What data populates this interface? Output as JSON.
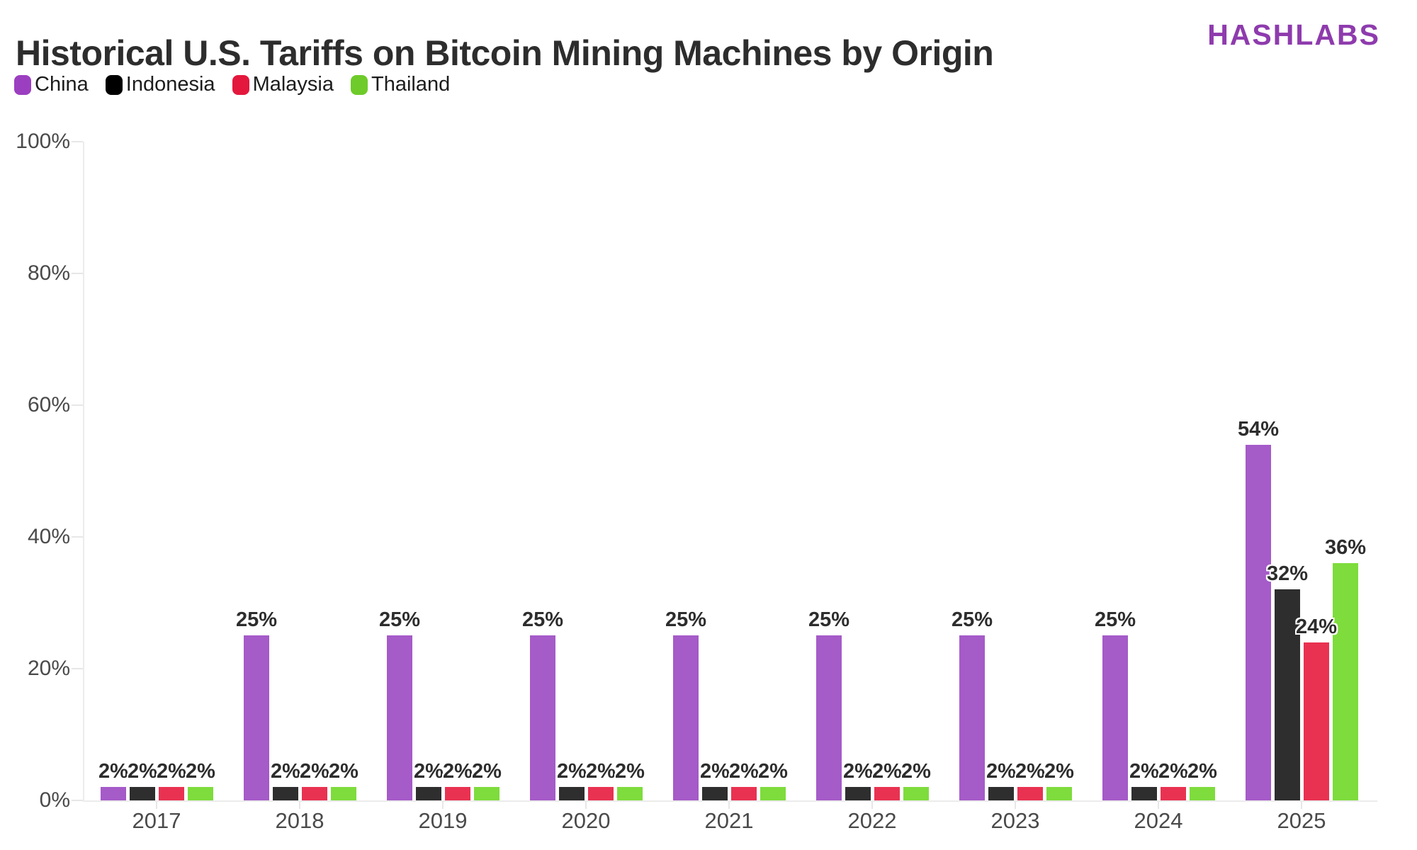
{
  "brand": {
    "logo_text": "HASHLABS",
    "logo_color": "#8e3bad"
  },
  "chart_data": {
    "type": "bar",
    "title": "Historical U.S. Tariffs on Bitcoin Mining Machines by Origin",
    "categories": [
      "2017",
      "2018",
      "2019",
      "2020",
      "2021",
      "2022",
      "2023",
      "2024",
      "2025"
    ],
    "series": [
      {
        "name": "China",
        "color": "#a55bc8",
        "legend_color": "#9b3fc0",
        "values": [
          2,
          25,
          25,
          25,
          25,
          25,
          25,
          25,
          54
        ]
      },
      {
        "name": "Indonesia",
        "color": "#2e2e2e",
        "legend_color": "#000000",
        "values": [
          2,
          2,
          2,
          2,
          2,
          2,
          2,
          2,
          32
        ]
      },
      {
        "name": "Malaysia",
        "color": "#e93251",
        "legend_color": "#e4183d",
        "values": [
          2,
          2,
          2,
          2,
          2,
          2,
          2,
          2,
          24
        ]
      },
      {
        "name": "Thailand",
        "color": "#7edc3c",
        "legend_color": "#6ecb2a",
        "values": [
          2,
          2,
          2,
          2,
          2,
          2,
          2,
          2,
          36
        ]
      }
    ],
    "unit": "%",
    "ylim": [
      0,
      100
    ],
    "y_ticks": [
      "0%",
      "20%",
      "40%",
      "60%",
      "80%",
      "100%"
    ],
    "grid": false,
    "legend_position": "top-left",
    "data_labels": true
  }
}
